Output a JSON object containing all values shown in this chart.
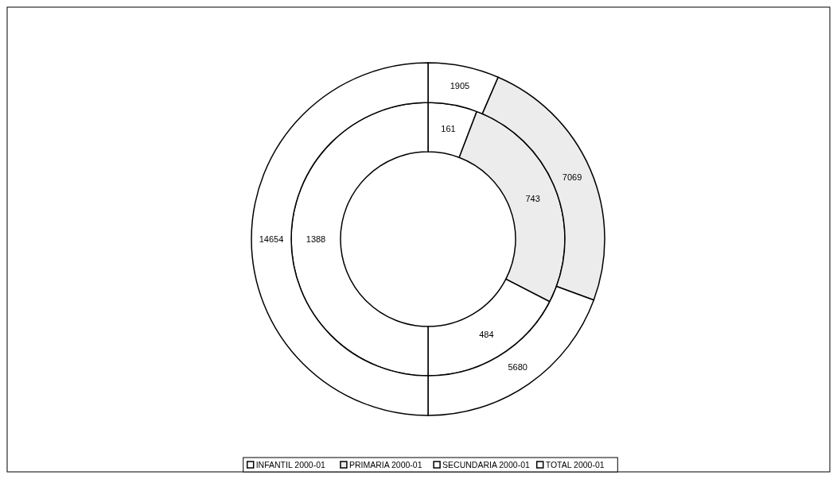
{
  "chart_data": {
    "type": "donut",
    "categories": [
      "INFANTIL 2000-01",
      "PRIMARIA 2000-01",
      "SECUNDARIA 2000-01",
      "TOTAL 2000-01"
    ],
    "series": [
      {
        "values": [
          161,
          743,
          484,
          1388
        ]
      },
      {
        "values": [
          1905,
          7069,
          5680,
          14654
        ]
      }
    ],
    "colors": [
      "#ffffff",
      "#ececec",
      "#ffffff",
      "#ffffff"
    ],
    "data_labels": true,
    "legend": "bottom"
  }
}
